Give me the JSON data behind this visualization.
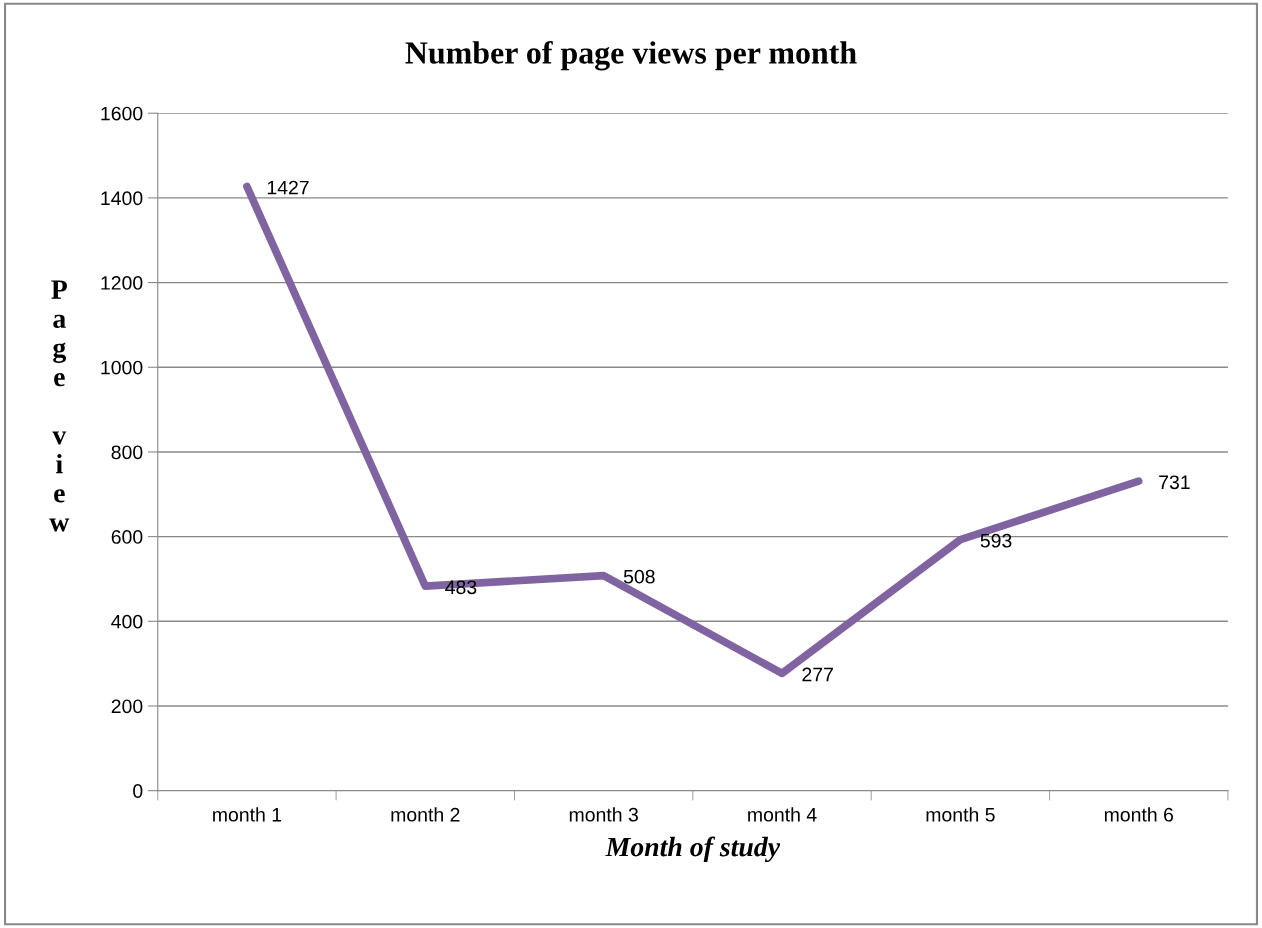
{
  "chart_data": {
    "type": "line",
    "title": "Number of page views per month",
    "xlabel": "Month of study",
    "ylabel": "Page view",
    "categories": [
      "month 1",
      "month 2",
      "month 3",
      "month 4",
      "month 5",
      "month 6"
    ],
    "series": [
      {
        "color": "#8064a2",
        "values": [
          1427,
          483,
          508,
          277,
          593,
          731
        ]
      }
    ],
    "ylim": [
      0,
      1600
    ],
    "yticks": [
      0,
      200,
      400,
      600,
      800,
      1000,
      1200,
      1400,
      1600
    ],
    "grid": "y",
    "data_labels": true,
    "legend": false,
    "marker": "none",
    "line_style": "solid"
  }
}
